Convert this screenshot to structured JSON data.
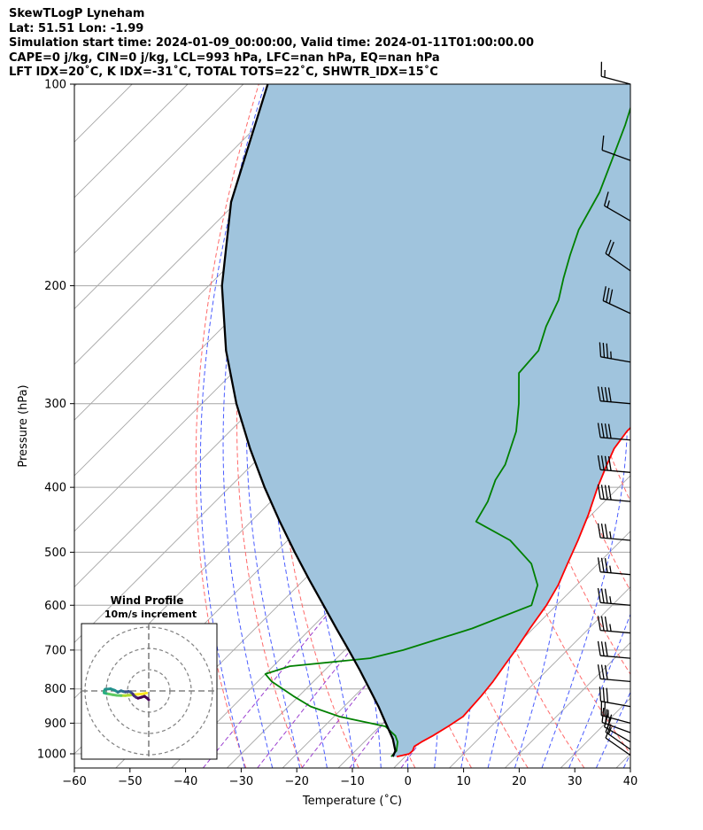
{
  "header": {
    "title": "SkewTLogP Lyneham",
    "location": "Lat: 51.51   Lon: -1.99",
    "times": "Simulation start time: 2024-01-09_00:00:00, Valid time: 2024-01-11T01:00:00.00",
    "params": "CAPE=0 j/kg, CIN=0 j/kg, LCL=993 hPa, LFC=nan hPa, EQ=nan hPa",
    "indices": "LFT IDX=20˚C, K IDX=-31˚C, TOTAL TOTS=22˚C, SHWTR_IDX=15˚C"
  },
  "chart_data": {
    "type": "line",
    "xlabel": "Temperature (˚C)",
    "ylabel": "Pressure (hPa)",
    "xlim": [
      -60,
      40
    ],
    "ylim": [
      1050,
      100
    ],
    "y_scale": "log",
    "x_ticks": [
      "−60",
      "−50",
      "−40",
      "−30",
      "−20",
      "−10",
      "0",
      "10",
      "20",
      "30",
      "40"
    ],
    "y_ticks": [
      "100",
      "200",
      "300",
      "400",
      "500",
      "600",
      "700",
      "800",
      "900",
      "1000"
    ],
    "grid": true,
    "colors": {
      "temperature": "#ff0000",
      "dewpoint": "#008000",
      "parcel": "#000000",
      "cape_fill": "#a0c4dd",
      "dry_adiabat": "#ff6a6a",
      "moist_adiabat": "#4a5cff",
      "mixing_ratio": "#9b3fd0",
      "isotherm": "#a6a6a6"
    },
    "series": [
      {
        "key": "temperature",
        "points": [
          [
            1010,
            -1.5
          ],
          [
            1000,
            0.2
          ],
          [
            990,
            0.3
          ],
          [
            975,
            -0.2
          ],
          [
            960,
            0.3
          ],
          [
            940,
            1.2
          ],
          [
            910,
            2.3
          ],
          [
            880,
            3.2
          ],
          [
            850,
            3.0
          ],
          [
            820,
            2.8
          ],
          [
            780,
            2.3
          ],
          [
            740,
            1.5
          ],
          [
            700,
            0.7
          ],
          [
            650,
            -0.6
          ],
          [
            600,
            -1.8
          ],
          [
            560,
            -3.3
          ],
          [
            520,
            -5.5
          ],
          [
            480,
            -7.8
          ],
          [
            440,
            -10.5
          ],
          [
            400,
            -13.8
          ],
          [
            370,
            -16.2
          ],
          [
            350,
            -17.8
          ],
          [
            330,
            -18.6
          ],
          [
            310,
            -18.6
          ],
          [
            295,
            -19.1
          ],
          [
            280,
            -18.8
          ],
          [
            260,
            -19.5
          ],
          [
            240,
            -20.8
          ],
          [
            220,
            -22.5
          ],
          [
            200,
            -25.0
          ],
          [
            185,
            -25.2
          ],
          [
            170,
            -26.5
          ],
          [
            155,
            -28.0
          ],
          [
            140,
            -29.8
          ],
          [
            130,
            -30.0
          ],
          [
            120,
            -31.0
          ],
          [
            110,
            -33.5
          ],
          [
            100,
            -36.2
          ]
        ]
      },
      {
        "key": "dewpoint",
        "points": [
          [
            1010,
            -2.5
          ],
          [
            990,
            -2.6
          ],
          [
            960,
            -4.0
          ],
          [
            940,
            -5.5
          ],
          [
            910,
            -9.0
          ],
          [
            880,
            -19.0
          ],
          [
            850,
            -26.0
          ],
          [
            820,
            -31.0
          ],
          [
            780,
            -37.5
          ],
          [
            760,
            -40.0
          ],
          [
            740,
            -37.0
          ],
          [
            720,
            -24.0
          ],
          [
            700,
            -19.5
          ],
          [
            650,
            -11.0
          ],
          [
            600,
            -4.5
          ],
          [
            560,
            -7.0
          ],
          [
            520,
            -12.0
          ],
          [
            480,
            -20.0
          ],
          [
            450,
            -29.5
          ],
          [
            420,
            -31.0
          ],
          [
            390,
            -33.5
          ],
          [
            370,
            -34.5
          ],
          [
            330,
            -38.5
          ],
          [
            300,
            -43.0
          ],
          [
            270,
            -48.5
          ],
          [
            250,
            -49.0
          ],
          [
            230,
            -52.0
          ],
          [
            210,
            -54.5
          ],
          [
            195,
            -57.5
          ],
          [
            180,
            -60.5
          ],
          [
            165,
            -63.5
          ],
          [
            145,
            -66.5
          ],
          [
            130,
            -70.0
          ],
          [
            115,
            -74.0
          ],
          [
            100,
            -79.0
          ]
        ]
      },
      {
        "key": "parcel",
        "points": [
          [
            1010,
            -2.2
          ],
          [
            990,
            -2.8
          ],
          [
            950,
            -5.4
          ],
          [
            900,
            -9.5
          ],
          [
            850,
            -13.8
          ],
          [
            800,
            -18.6
          ],
          [
            750,
            -23.7
          ],
          [
            700,
            -29.3
          ],
          [
            650,
            -35.4
          ],
          [
            600,
            -41.9
          ],
          [
            550,
            -49.0
          ],
          [
            500,
            -56.6
          ],
          [
            450,
            -64.8
          ],
          [
            400,
            -73.7
          ],
          [
            350,
            -83.3
          ],
          [
            300,
            -93.8
          ],
          [
            250,
            -105.2
          ],
          [
            200,
            -117.6
          ],
          [
            150,
            -131.0
          ],
          [
            100,
            -145.6
          ]
        ]
      }
    ],
    "wind_barbs": [
      {
        "pressure": 100,
        "speed_kt": 15,
        "dir_deg": 285
      },
      {
        "pressure": 130,
        "speed_kt": 10,
        "dir_deg": 290
      },
      {
        "pressure": 160,
        "speed_kt": 15,
        "dir_deg": 300
      },
      {
        "pressure": 190,
        "speed_kt": 20,
        "dir_deg": 305
      },
      {
        "pressure": 220,
        "speed_kt": 30,
        "dir_deg": 295
      },
      {
        "pressure": 260,
        "speed_kt": 35,
        "dir_deg": 280
      },
      {
        "pressure": 300,
        "speed_kt": 40,
        "dir_deg": 275
      },
      {
        "pressure": 340,
        "speed_kt": 40,
        "dir_deg": 275
      },
      {
        "pressure": 380,
        "speed_kt": 40,
        "dir_deg": 275
      },
      {
        "pressure": 420,
        "speed_kt": 40,
        "dir_deg": 275
      },
      {
        "pressure": 480,
        "speed_kt": 35,
        "dir_deg": 275
      },
      {
        "pressure": 540,
        "speed_kt": 35,
        "dir_deg": 275
      },
      {
        "pressure": 600,
        "speed_kt": 35,
        "dir_deg": 275
      },
      {
        "pressure": 660,
        "speed_kt": 35,
        "dir_deg": 275
      },
      {
        "pressure": 720,
        "speed_kt": 30,
        "dir_deg": 275
      },
      {
        "pressure": 780,
        "speed_kt": 30,
        "dir_deg": 275
      },
      {
        "pressure": 850,
        "speed_kt": 30,
        "dir_deg": 280
      },
      {
        "pressure": 900,
        "speed_kt": 25,
        "dir_deg": 285
      },
      {
        "pressure": 930,
        "speed_kt": 25,
        "dir_deg": 290
      },
      {
        "pressure": 960,
        "speed_kt": 20,
        "dir_deg": 300
      },
      {
        "pressure": 985,
        "speed_kt": 15,
        "dir_deg": 305
      },
      {
        "pressure": 1005,
        "speed_kt": 10,
        "dir_deg": 305
      }
    ],
    "hodograph": {
      "title": "Wind Profile",
      "subtitle": "10m/s increment",
      "rings": 3,
      "path": [
        [
          -1.0,
          -1.0
        ],
        [
          -3.0,
          -1.4
        ],
        [
          -5.0,
          -1.6
        ],
        [
          -7.0,
          -1.8
        ],
        [
          -9.0,
          -2.0
        ],
        [
          -11.0,
          -2.2
        ],
        [
          -13.0,
          -2.2
        ],
        [
          -15.0,
          -2.1
        ],
        [
          -17.0,
          -1.8
        ],
        [
          -20.0,
          -1.2
        ],
        [
          -21.0,
          -0.9
        ],
        [
          -21.0,
          0.0
        ],
        [
          -20.5,
          0.8
        ],
        [
          -18.0,
          1.0
        ],
        [
          -16.0,
          0.3
        ],
        [
          -14.5,
          -0.6
        ],
        [
          -13.0,
          0.1
        ],
        [
          -12.0,
          -0.3
        ],
        [
          -11.0,
          -0.5
        ],
        [
          -9.5,
          -0.2
        ],
        [
          -8.5,
          -0.6
        ],
        [
          -7.5,
          -1.4
        ],
        [
          -7.0,
          -2.2
        ],
        [
          -6.0,
          -3.0
        ],
        [
          -5.0,
          -3.4
        ],
        [
          -3.5,
          -3.0
        ],
        [
          -2.0,
          -2.5
        ],
        [
          -0.5,
          -3.6
        ],
        [
          0.0,
          -4.2
        ]
      ]
    }
  }
}
